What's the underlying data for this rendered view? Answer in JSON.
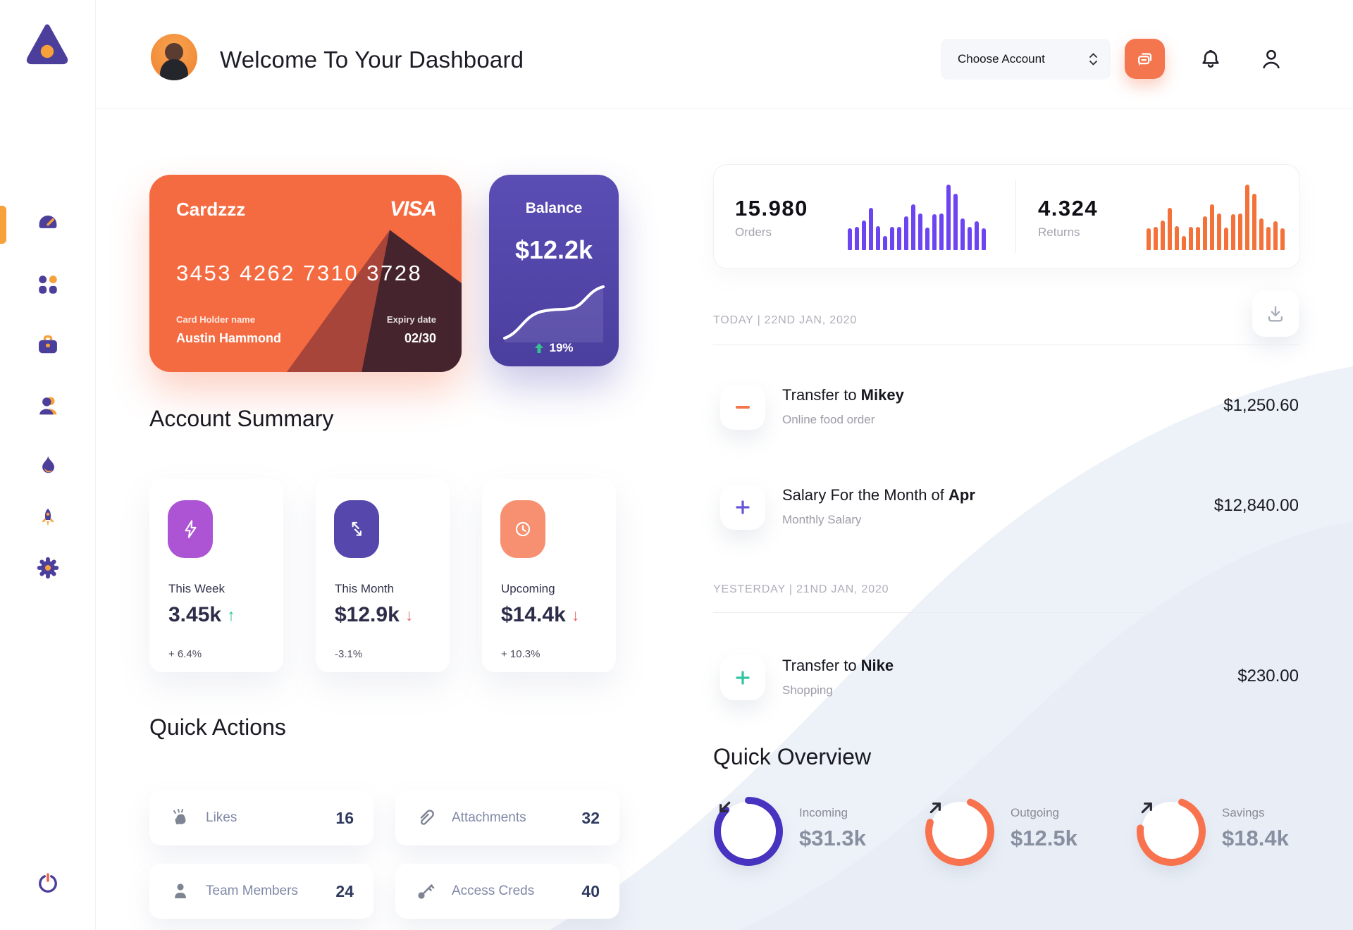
{
  "header": {
    "title": "Welcome To Your Dashboard",
    "account_select": {
      "label": "Choose Account"
    }
  },
  "sidebar": {
    "items": [
      {
        "name": "dashboard",
        "active": true
      },
      {
        "name": "apps",
        "active": false
      },
      {
        "name": "portfolio",
        "active": false
      },
      {
        "name": "team",
        "active": false
      },
      {
        "name": "trending",
        "active": false
      },
      {
        "name": "launch",
        "active": false
      },
      {
        "name": "settings",
        "active": false
      }
    ],
    "logout": "power"
  },
  "credit_card": {
    "name": "Cardzzz",
    "brand": "VISA",
    "number": "3453 4262 7310 3728",
    "holder_label": "Card Holder name",
    "holder_name": "Austin Hammond",
    "expiry_label": "Expiry date",
    "expiry": "02/30"
  },
  "balance_card": {
    "label": "Balance",
    "value": "$12.2k",
    "change": "19%"
  },
  "account_summary": {
    "title": "Account Summary",
    "items": [
      {
        "label": "This Week",
        "value": "3.45k",
        "trend": "up",
        "delta": "+ 6.4%",
        "icon": "bolt-icon",
        "icon_bg": "#AC54D4"
      },
      {
        "label": "This Month",
        "value": "$12.9k",
        "trend": "down",
        "delta": "-3.1%",
        "icon": "arrows-icon",
        "icon_bg": "#5547AC"
      },
      {
        "label": "Upcoming",
        "value": "$14.4k",
        "trend": "down",
        "delta": "+ 10.3%",
        "icon": "clock-icon",
        "icon_bg": "#F79070"
      }
    ]
  },
  "quick_actions": {
    "title": "Quick Actions",
    "items": [
      {
        "label": "Likes",
        "count": "16",
        "icon": "clap-icon"
      },
      {
        "label": "Attachments",
        "count": "32",
        "icon": "paperclip-icon"
      },
      {
        "label": "Team Members",
        "count": "24",
        "icon": "member-icon"
      },
      {
        "label": "Access Creds",
        "count": "40",
        "icon": "key-icon"
      }
    ]
  },
  "stats": {
    "orders": {
      "value": "15.980",
      "label": "Orders"
    },
    "returns": {
      "value": "4.324",
      "label": "Returns"
    }
  },
  "transactions": {
    "sections": [
      {
        "header": "TODAY | 22ND JAN, 2020",
        "rows": [
          {
            "title_prefix": "Transfer to ",
            "title_bold": "Mikey",
            "subtitle": "Online food order",
            "amount": "$1,250.60",
            "sign": "minus",
            "sign_color": "#F4764E"
          },
          {
            "title_prefix": "Salary For the Month of ",
            "title_bold": "Apr",
            "subtitle": "Monthly Salary",
            "amount": "$12,840.00",
            "sign": "plus",
            "sign_color": "#6553D8"
          }
        ]
      },
      {
        "header": "YESTERDAY | 21ND JAN, 2020",
        "rows": [
          {
            "title_prefix": "Transfer to ",
            "title_bold": "Nike",
            "subtitle": "Shopping",
            "amount": "$230.00",
            "sign": "plus",
            "sign_color": "#2EC5A2"
          }
        ]
      }
    ]
  },
  "quick_overview": {
    "title": "Quick Overview",
    "items": [
      {
        "label": "Incoming",
        "value": "$31.3k",
        "percent": 87,
        "color": "#4733BF",
        "direction": "down-left"
      },
      {
        "label": "Outgoing",
        "value": "$12.5k",
        "percent": 74,
        "color": "#F8724D",
        "direction": "up-right"
      },
      {
        "label": "Savings",
        "value": "$18.4k",
        "percent": 71,
        "color": "#F8724D",
        "direction": "up-right"
      }
    ]
  },
  "chart_data": [
    {
      "id": "orders_sparkbars",
      "type": "bar",
      "title": "Orders activity sparkline",
      "color": "#6C44F2",
      "values": [
        33,
        35,
        45,
        65,
        37,
        22,
        35,
        35,
        52,
        70,
        56,
        34,
        55,
        56,
        100,
        86,
        48,
        36,
        44,
        33
      ],
      "note": "unlabeled sparkline, values are relative heights in percent"
    },
    {
      "id": "returns_sparkbars",
      "type": "bar",
      "title": "Returns activity sparkline",
      "color": "#F4713A",
      "values": [
        33,
        35,
        45,
        65,
        37,
        22,
        35,
        35,
        52,
        70,
        56,
        34,
        55,
        56,
        100,
        86,
        48,
        36,
        44,
        33
      ],
      "note": "unlabeled sparkline, values are relative heights in percent"
    },
    {
      "id": "balance_sparkline",
      "type": "line",
      "title": "Balance trend sparkline",
      "color": "#FFFFFF",
      "values": [
        4,
        8,
        18,
        34,
        46,
        50,
        51,
        50,
        53,
        58,
        74,
        88,
        90
      ],
      "note": "unlabeled sparkline inside Balance card"
    }
  ],
  "colors": {
    "accent_orange": "#F4764E",
    "accent_purple": "#4A3E9E",
    "bars_purple": "#6C44F2",
    "bars_orange": "#F4713A",
    "positive_green": "#2FBE8F",
    "negative_red": "#E96A6A",
    "sidebar_icon_purple": "#4C3F9B",
    "sidebar_icon_orange": "#F6A13A"
  }
}
